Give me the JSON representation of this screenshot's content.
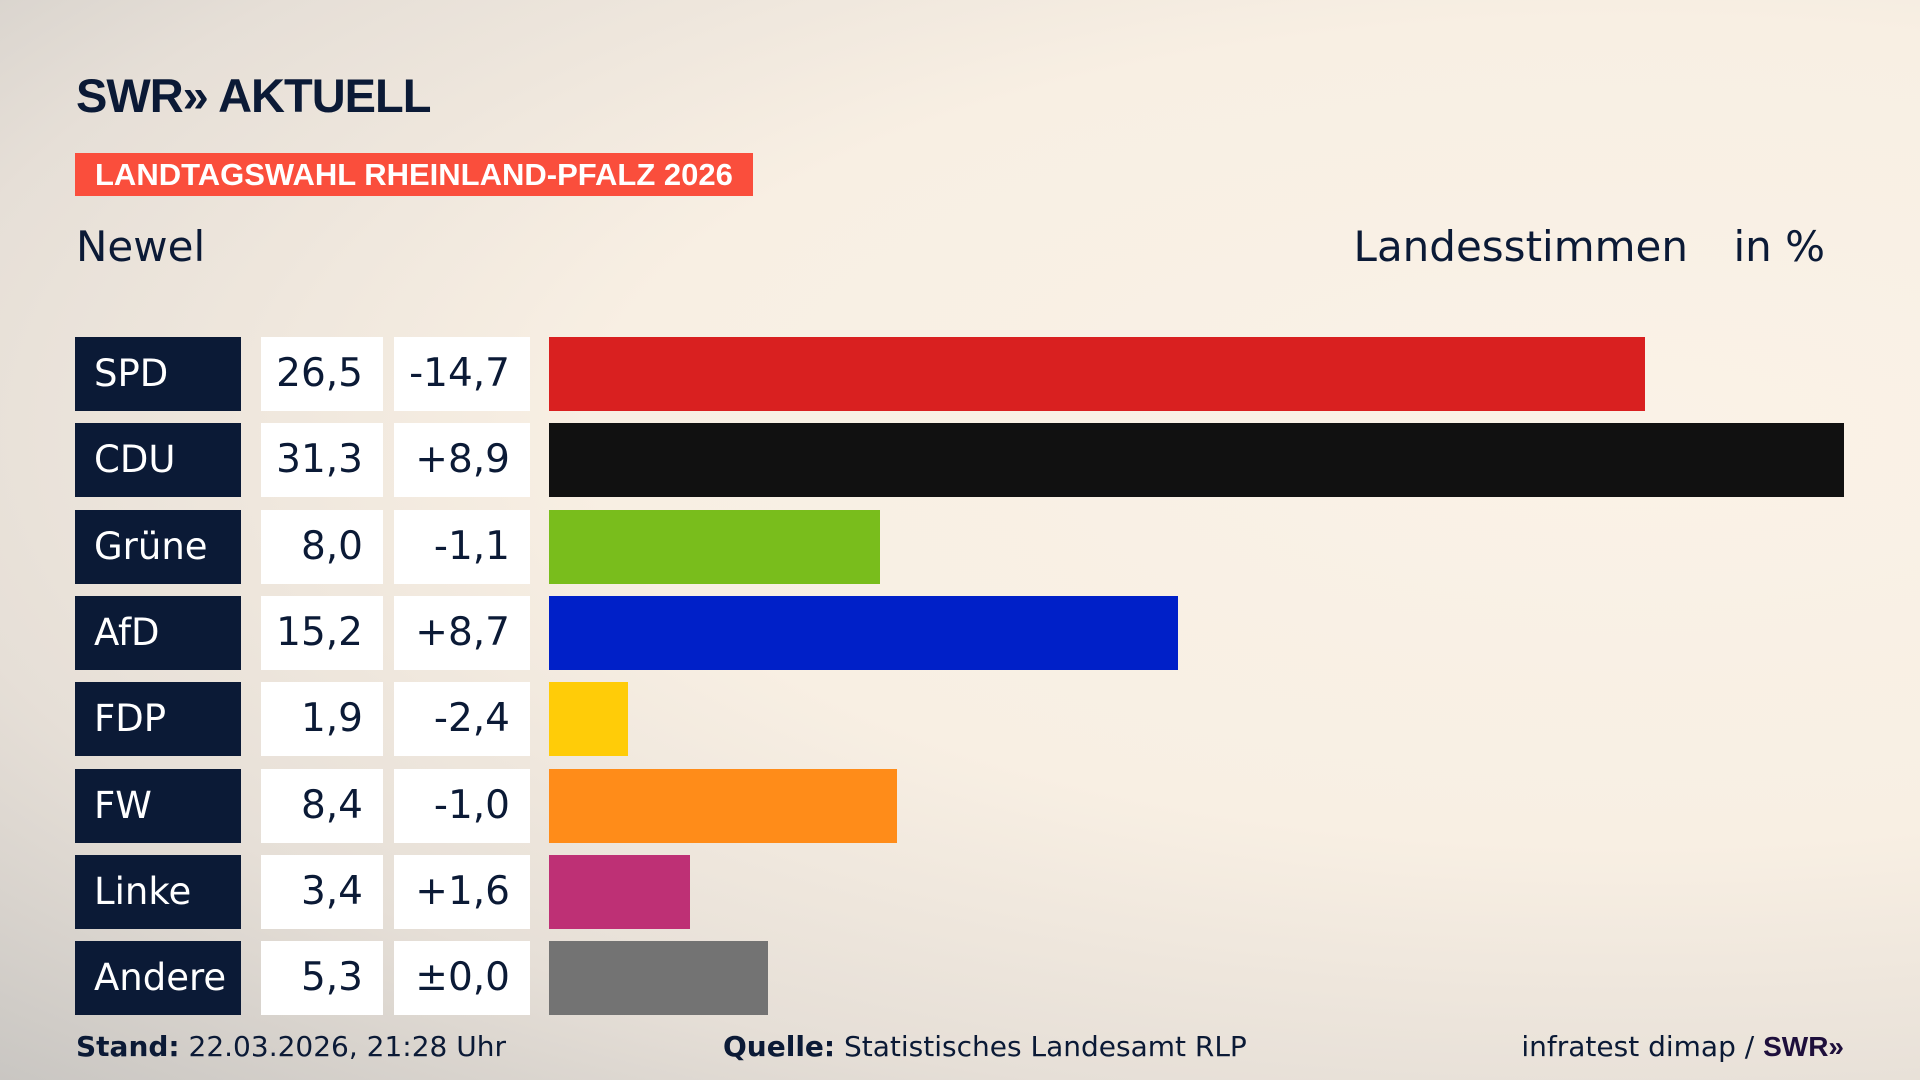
{
  "header": {
    "logo": "SWR» AKTUELL",
    "banner": "LANDTAGSWAHL RHEINLAND-PFALZ 2026",
    "region": "Newel",
    "metric": "Landesstimmen",
    "unit": "in %"
  },
  "colors": {
    "banner": "#fa4e3c",
    "party_box": "#0b1a36"
  },
  "chart_data": {
    "type": "bar",
    "orientation": "horizontal",
    "categories": [
      "SPD",
      "CDU",
      "Grüne",
      "AfD",
      "FDP",
      "FW",
      "Linke",
      "Andere"
    ],
    "values": [
      26.5,
      31.3,
      8.0,
      15.2,
      1.9,
      8.4,
      3.4,
      5.3
    ],
    "value_labels": [
      "26,5",
      "31,3",
      "8,0",
      "15,2",
      "1,9",
      "8,4",
      "3,4",
      "5,3"
    ],
    "diff_labels": [
      "-14,7",
      "+8,9",
      "-1,1",
      "+8,7",
      "-2,4",
      "-1,0",
      "+1,6",
      "±0,0"
    ],
    "colors": [
      "#d92020",
      "#111111",
      "#79bd1c",
      "#0020c8",
      "#ffcc08",
      "#ff8c19",
      "#be3075",
      "#737373"
    ],
    "xlim": [
      0,
      31.3
    ]
  },
  "footer": {
    "stand_label": "Stand:",
    "stand": "22.03.2026, 21:28 Uhr",
    "source_label": "Quelle:",
    "source": "Statistisches Landesamt RLP",
    "credit": "infratest dimap /",
    "credit_logo": "SWR»"
  }
}
